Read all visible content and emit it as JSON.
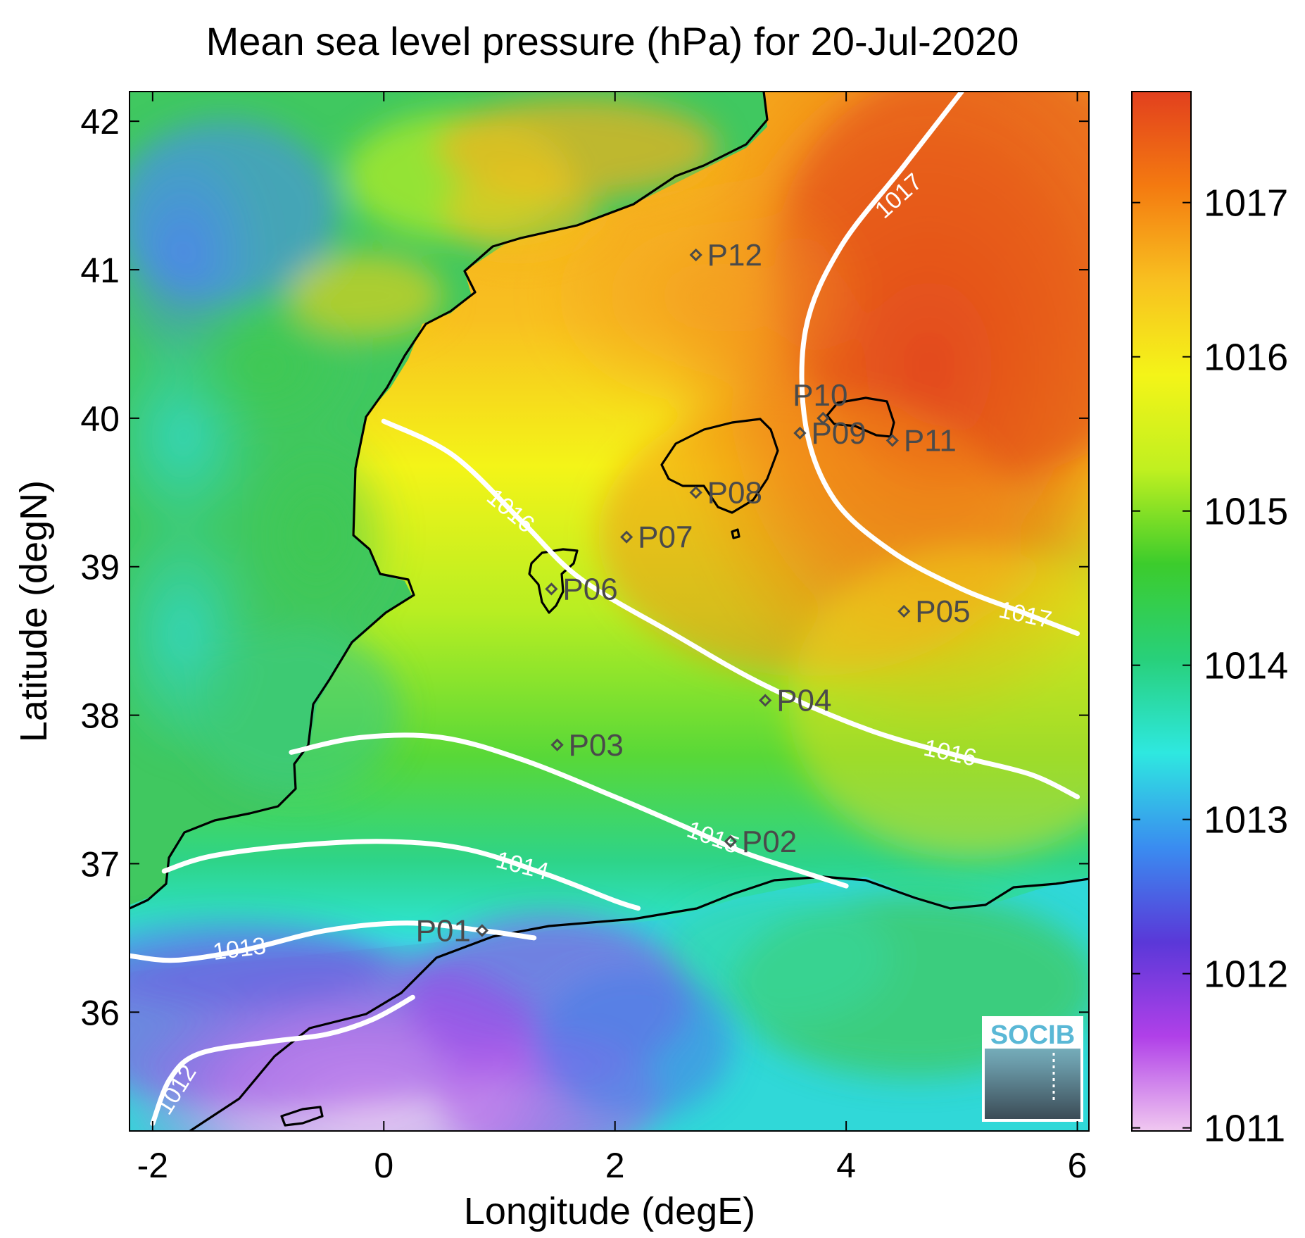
{
  "chart_data": {
    "type": "heatmap",
    "title": "Mean sea level pressure (hPa) for 20-Jul-2020",
    "xlabel": "Longitude (degE)",
    "ylabel": "Latitude (degN)",
    "xlim": [
      -2.2,
      6.1
    ],
    "ylim": [
      35.2,
      42.2
    ],
    "x_ticks": [
      -2,
      0,
      2,
      4,
      6
    ],
    "y_ticks": [
      36,
      37,
      38,
      39,
      40,
      41,
      42
    ],
    "colorbar": {
      "range": [
        1010.98,
        1017.72
      ],
      "ticks": [
        1011,
        1012,
        1013,
        1014,
        1015,
        1016,
        1017
      ],
      "colormap": [
        "#f0c8f0",
        "#b040e8",
        "#5a38d8",
        "#3a8cf0",
        "#2ee8e0",
        "#28d07a",
        "#3ccc2c",
        "#c0f020",
        "#f4f418",
        "#f8c020",
        "#f47a10",
        "#e2401e"
      ]
    },
    "contours": [
      {
        "level": "1012",
        "points": [
          [
            -2.0,
            35.25
          ],
          [
            -1.85,
            35.55
          ],
          [
            -1.6,
            35.72
          ],
          [
            -1.0,
            35.8
          ],
          [
            -0.5,
            35.85
          ],
          [
            -0.1,
            35.95
          ],
          [
            0.25,
            36.1
          ]
        ],
        "label_at": [
          -1.8,
          35.48
        ],
        "label_angle": -58
      },
      {
        "level": "1013",
        "points": [
          [
            -2.2,
            36.38
          ],
          [
            -1.8,
            36.35
          ],
          [
            -1.2,
            36.42
          ],
          [
            -0.5,
            36.55
          ],
          [
            0.2,
            36.6
          ],
          [
            0.85,
            36.55
          ],
          [
            1.3,
            36.5
          ]
        ],
        "label_at": [
          -1.25,
          36.43
        ],
        "label_angle": -7
      },
      {
        "level": "1014",
        "points": [
          [
            -1.9,
            36.95
          ],
          [
            -1.5,
            37.05
          ],
          [
            -0.8,
            37.12
          ],
          [
            0.0,
            37.15
          ],
          [
            0.7,
            37.1
          ],
          [
            1.4,
            36.93
          ],
          [
            2.0,
            36.75
          ],
          [
            2.2,
            36.7
          ]
        ],
        "label_at": [
          1.2,
          36.99
        ],
        "label_angle": 14
      },
      {
        "level": "1015",
        "points": [
          [
            -0.8,
            37.75
          ],
          [
            -0.2,
            37.85
          ],
          [
            0.5,
            37.85
          ],
          [
            1.2,
            37.7
          ],
          [
            2.0,
            37.45
          ],
          [
            2.6,
            37.25
          ],
          [
            3.1,
            37.08
          ],
          [
            3.6,
            36.95
          ],
          [
            4.0,
            36.85
          ]
        ],
        "label_at": [
          2.85,
          37.18
        ],
        "label_angle": 20
      },
      {
        "level": "1016",
        "points": [
          [
            0.0,
            39.98
          ],
          [
            0.6,
            39.75
          ],
          [
            1.2,
            39.3
          ],
          [
            1.7,
            38.92
          ],
          [
            2.5,
            38.55
          ],
          [
            3.3,
            38.2
          ],
          [
            4.2,
            37.9
          ],
          [
            5.0,
            37.72
          ],
          [
            5.6,
            37.6
          ],
          [
            6.0,
            37.45
          ]
        ],
        "label_at": [
          1.1,
          39.38
        ],
        "label_angle": 40,
        "label2_at": [
          4.9,
          37.75
        ],
        "label2_angle": 12
      },
      {
        "level": "1017",
        "points": [
          [
            5.0,
            42.2
          ],
          [
            4.5,
            41.7
          ],
          [
            3.95,
            41.15
          ],
          [
            3.65,
            40.6
          ],
          [
            3.65,
            39.95
          ],
          [
            3.9,
            39.45
          ],
          [
            4.4,
            39.1
          ],
          [
            5.0,
            38.85
          ],
          [
            5.5,
            38.7
          ],
          [
            6.0,
            38.55
          ]
        ],
        "label_at": [
          4.45,
          41.5
        ],
        "label_angle": -42,
        "label2_at": [
          5.55,
          38.68
        ],
        "label2_angle": 12
      }
    ],
    "stations": [
      {
        "label": "P01",
        "lon": 0.85,
        "lat": 36.55
      },
      {
        "label": "P02",
        "lon": 3.0,
        "lat": 37.15
      },
      {
        "label": "P03",
        "lon": 1.5,
        "lat": 37.8
      },
      {
        "label": "P04",
        "lon": 3.3,
        "lat": 38.1
      },
      {
        "label": "P05",
        "lon": 4.5,
        "lat": 38.7
      },
      {
        "label": "P06",
        "lon": 1.45,
        "lat": 38.85
      },
      {
        "label": "P07",
        "lon": 2.1,
        "lat": 39.2
      },
      {
        "label": "P08",
        "lon": 2.7,
        "lat": 39.5
      },
      {
        "label": "P09",
        "lon": 3.6,
        "lat": 39.9
      },
      {
        "label": "P10",
        "lon": 3.8,
        "lat": 40.0
      },
      {
        "label": "P11",
        "lon": 4.4,
        "lat": 39.85
      },
      {
        "label": "P12",
        "lon": 2.7,
        "lat": 41.1
      }
    ]
  },
  "logo": {
    "text": "SOCIB"
  }
}
